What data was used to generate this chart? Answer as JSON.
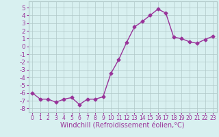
{
  "x": [
    0,
    1,
    2,
    3,
    4,
    5,
    6,
    7,
    8,
    9,
    10,
    11,
    12,
    13,
    14,
    15,
    16,
    17,
    18,
    19,
    20,
    21,
    22,
    23
  ],
  "y": [
    -6.0,
    -6.8,
    -6.8,
    -7.2,
    -6.8,
    -6.6,
    -7.5,
    -6.8,
    -6.8,
    -6.5,
    -3.5,
    -1.7,
    0.5,
    2.5,
    3.2,
    4.0,
    4.8,
    4.3,
    1.2,
    1.0,
    0.6,
    0.4,
    0.9,
    1.3
  ],
  "line_color": "#993399",
  "marker": "D",
  "markersize": 2.5,
  "linewidth": 1,
  "xlabel": "Windchill (Refroidissement éolien,°C)",
  "xlim": [
    -0.5,
    23.5
  ],
  "ylim": [
    -8.5,
    5.8
  ],
  "yticks": [
    -8,
    -7,
    -6,
    -5,
    -4,
    -3,
    -2,
    -1,
    0,
    1,
    2,
    3,
    4,
    5
  ],
  "xticks": [
    0,
    1,
    2,
    3,
    4,
    5,
    6,
    7,
    8,
    9,
    10,
    11,
    12,
    13,
    14,
    15,
    16,
    17,
    18,
    19,
    20,
    21,
    22,
    23
  ],
  "bg_color": "#d8f0f0",
  "grid_color": "#b0c8c8",
  "tick_label_color": "#993399",
  "xlabel_color": "#993399",
  "xtick_fontsize": 5.5,
  "ytick_fontsize": 6.5,
  "xlabel_fontsize": 7
}
